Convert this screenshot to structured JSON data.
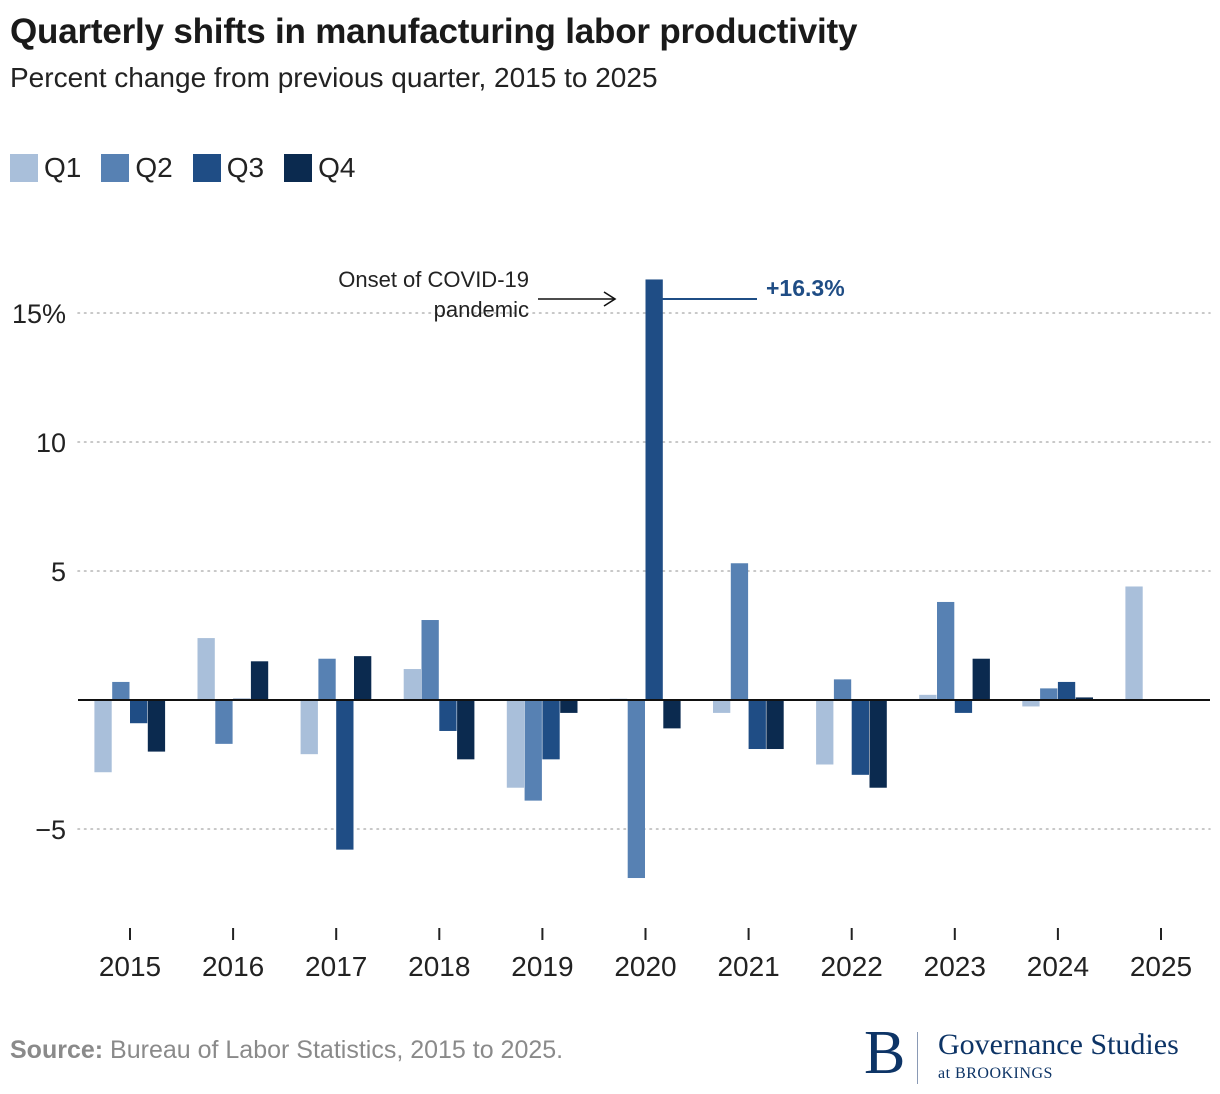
{
  "header": {
    "title": "Quarterly shifts in manufacturing labor productivity",
    "subtitle": "Percent change from previous quarter, 2015 to 2025"
  },
  "legend": [
    {
      "label": "Q1",
      "color": "#a9bfda"
    },
    {
      "label": "Q2",
      "color": "#5781b3"
    },
    {
      "label": "Q3",
      "color": "#1f4d85"
    },
    {
      "label": "Q4",
      "color": "#0b2a4f"
    }
  ],
  "annotation": {
    "line1": "Onset of COVID-19",
    "line2": "pandemic",
    "value_label": "+16.3%",
    "value_color": "#1f4d85"
  },
  "footer": {
    "source_label": "Source:",
    "source_text": "Bureau of Labor Statistics, 2015 to 2025.",
    "logo_letter": "B",
    "logo_name": "Governance Studies",
    "logo_sub": "at BROOKINGS"
  },
  "chart_data": {
    "type": "bar",
    "title": "Quarterly shifts in manufacturing labor productivity",
    "subtitle": "Percent change from previous quarter, 2015 to 2025",
    "xlabel": "",
    "ylabel": "",
    "ylim": [
      -9,
      18
    ],
    "yticks": [
      -5,
      5,
      10,
      15
    ],
    "ytick_labels": [
      "−5",
      "5",
      "10",
      "15%"
    ],
    "grid": true,
    "categories": [
      "2015",
      "2016",
      "2017",
      "2018",
      "2019",
      "2020",
      "2021",
      "2022",
      "2023",
      "2024",
      "2025"
    ],
    "series": [
      {
        "name": "Q1",
        "values": [
          -2.8,
          2.4,
          -2.1,
          1.2,
          -3.4,
          0.05,
          -0.5,
          -2.5,
          0.2,
          -0.25,
          4.4
        ]
      },
      {
        "name": "Q2",
        "values": [
          0.7,
          -1.7,
          1.6,
          3.1,
          -3.9,
          -6.9,
          5.3,
          0.8,
          3.8,
          0.45,
          null
        ]
      },
      {
        "name": "Q3",
        "values": [
          -0.9,
          0.05,
          -5.8,
          -1.2,
          -2.3,
          16.3,
          -1.9,
          -2.9,
          -0.5,
          0.7,
          null
        ]
      },
      {
        "name": "Q4",
        "values": [
          -2.0,
          1.5,
          1.7,
          -2.3,
          -0.5,
          -1.1,
          -1.9,
          -3.4,
          1.6,
          0.1,
          null
        ]
      }
    ],
    "annotations": [
      {
        "text": "Onset of COVID-19 pandemic",
        "target": "2020 Q3"
      },
      {
        "text": "+16.3%",
        "target": "2020 Q3"
      }
    ],
    "source": "Bureau of Labor Statistics, 2015 to 2025."
  }
}
